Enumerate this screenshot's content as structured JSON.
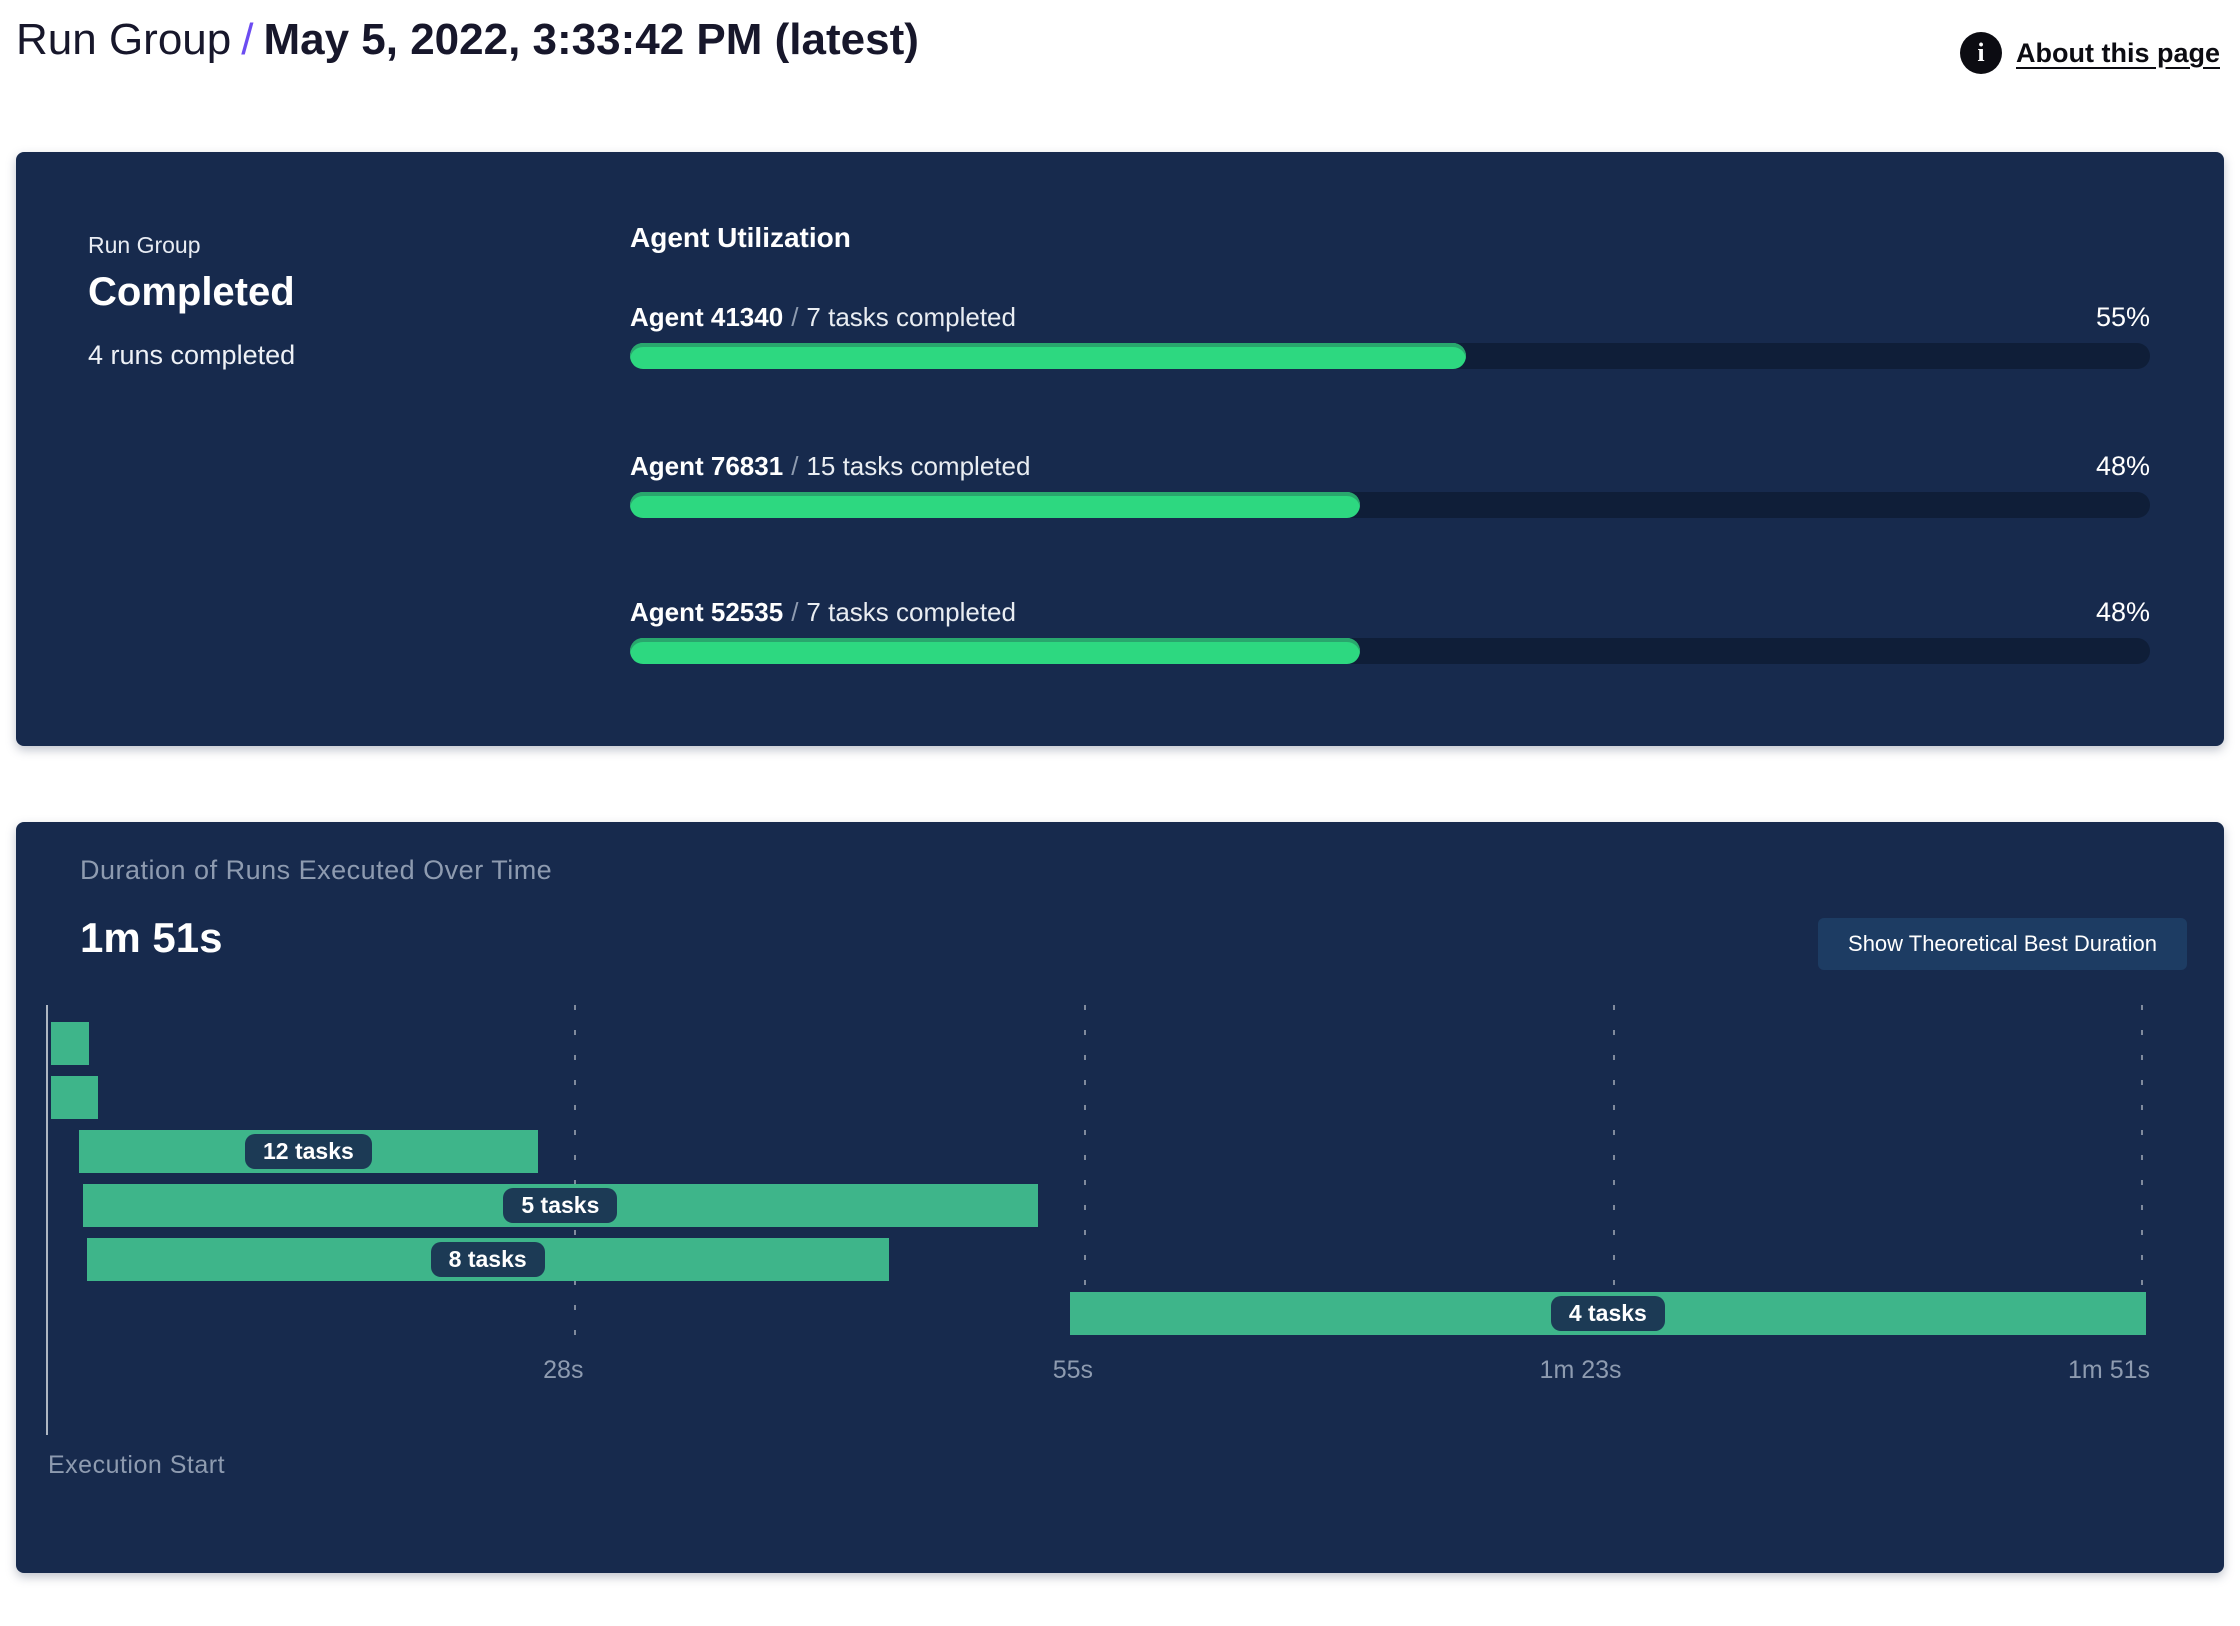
{
  "header": {
    "breadcrumb": "Run Group",
    "separator": "/",
    "title": "May 5, 2022, 3:33:42 PM (latest)",
    "about_link": "About this page",
    "info_icon": "info-icon"
  },
  "status_panel": {
    "eyebrow": "Run Group",
    "status": "Completed",
    "runs_summary": "4 runs completed",
    "utilization_heading": "Agent Utilization",
    "agent_separator": "/",
    "agents": [
      {
        "name": "Agent 41340",
        "tasks": "7 tasks completed",
        "percent": 55,
        "percent_label": "55%"
      },
      {
        "name": "Agent 76831",
        "tasks": "15 tasks completed",
        "percent": 48,
        "percent_label": "48%"
      },
      {
        "name": "Agent 52535",
        "tasks": "7 tasks completed",
        "percent": 48,
        "percent_label": "48%"
      }
    ]
  },
  "duration_panel": {
    "title": "Duration of Runs Executed Over Time",
    "total_duration": "1m 51s",
    "button_label": "Show Theoretical Best Duration",
    "execution_start_label": "Execution Start"
  },
  "chart_data": [
    {
      "type": "bar",
      "title": "Agent Utilization",
      "categories": [
        "Agent 41340",
        "Agent 76831",
        "Agent 52535"
      ],
      "series": [
        {
          "name": "utilization_percent",
          "values": [
            55,
            48,
            48
          ]
        }
      ],
      "annotations": [
        "7 tasks completed",
        "15 tasks completed",
        "7 tasks completed"
      ],
      "unit": "%",
      "xlim": [
        0,
        100
      ],
      "legend": "none",
      "grid": false
    },
    {
      "type": "gantt",
      "title": "Duration of Runs Executed Over Time",
      "total_duration_label": "1m 51s",
      "x_axis_start_label": "Execution Start",
      "xlim_seconds": [
        0,
        111
      ],
      "x_ticks": [
        {
          "label": "28s",
          "seconds": 28
        },
        {
          "label": "55s",
          "seconds": 55
        },
        {
          "label": "1m 23s",
          "seconds": 83
        },
        {
          "label": "1m 51s",
          "seconds": 111
        }
      ],
      "runs": [
        {
          "label": "",
          "start_seconds": 0.2,
          "end_seconds": 2.2
        },
        {
          "label": "",
          "start_seconds": 0.2,
          "end_seconds": 2.7
        },
        {
          "label": "12 tasks",
          "start_seconds": 1.7,
          "end_seconds": 26.0
        },
        {
          "label": "5 tasks",
          "start_seconds": 1.9,
          "end_seconds": 52.5
        },
        {
          "label": "8 tasks",
          "start_seconds": 2.1,
          "end_seconds": 44.6
        },
        {
          "label": "4 tasks",
          "start_seconds": 54.2,
          "end_seconds": 111.2
        }
      ],
      "grid": "vertical-dashed",
      "legend": "none"
    }
  ],
  "colors": {
    "panel_background": "#172A4D",
    "progress_fill": "#2DD880",
    "progress_fill_edge": "#29A76D",
    "progress_track": "#0F1E38",
    "gantt_bar": "#3EB58A",
    "task_pill_background": "#1C3A55",
    "muted_text": "#8E9BB0",
    "breadcrumb_separator": "#6C4CF1",
    "button_background": "#1D3C63",
    "info_icon_background": "#0C0C12"
  }
}
